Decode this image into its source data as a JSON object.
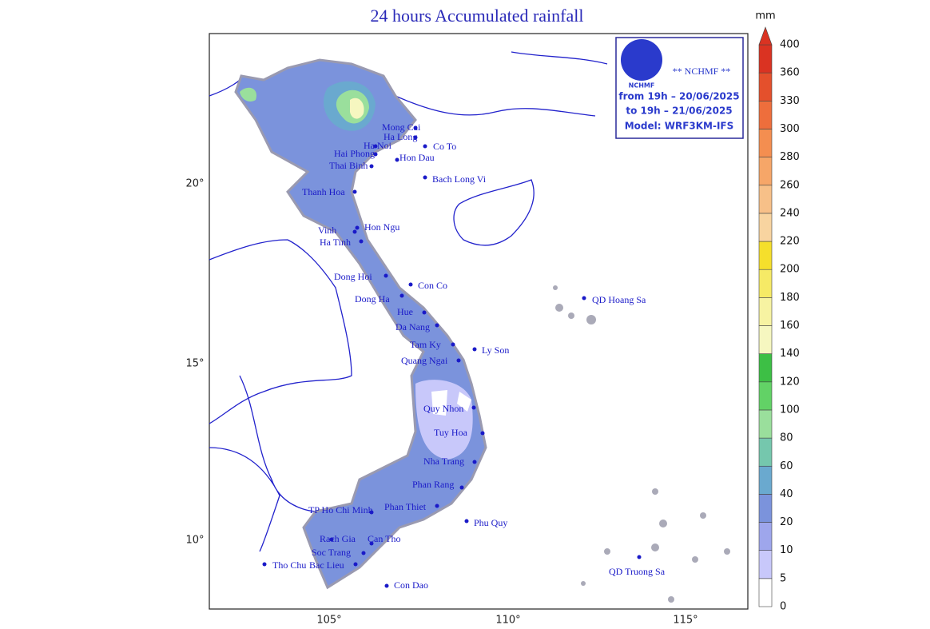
{
  "title": "24 hours Accumulated rainfall",
  "logo": {
    "emblem": "NCHMF",
    "agency": "** NCHMF **",
    "from": "from 19h – 20/06/2025",
    "to": "to 19h – 21/06/2025",
    "model": "Model: WRF3KM-IFS"
  },
  "axes": {
    "x_labels": [
      "105°",
      "110°",
      "115°"
    ],
    "y_labels": [
      "20°",
      "15°",
      "10°"
    ]
  },
  "colorbar": {
    "unit": "mm",
    "levels": [
      "0",
      "5",
      "10",
      "20",
      "40",
      "60",
      "80",
      "100",
      "120",
      "140",
      "160",
      "180",
      "200",
      "220",
      "240",
      "260",
      "280",
      "300",
      "330",
      "360",
      "400"
    ],
    "colors": [
      "#ffffff",
      "#c8c8fa",
      "#9ea6ec",
      "#7b93dc",
      "#6aa9cf",
      "#75c7ad",
      "#9adf9c",
      "#62d266",
      "#3dbf45",
      "#f6f7c0",
      "#f7f3a2",
      "#f6ea66",
      "#f5df2c",
      "#f8d4a0",
      "#f7c088",
      "#f6a668",
      "#f48e50",
      "#ee6e3c",
      "#e4502c",
      "#da3322"
    ]
  },
  "stations": [
    "Mong Cai",
    "Ha Noi",
    "Ha Long",
    "Co To",
    "Hon Dau",
    "Hai Phong",
    "Thai Binh",
    "Bach Long Vi",
    "Thanh Hoa",
    "Hon Ngu",
    "Vinh",
    "Ha Tinh",
    "Dong Hoi",
    "Con Co",
    "Dong Ha",
    "Hue",
    "Da Nang",
    "Tam Ky",
    "Ly Son",
    "Quang Ngai",
    "QD Hoang Sa",
    "Quy Nhon",
    "Tuy Hoa",
    "Nha Trang",
    "Phan Rang",
    "Phan Thiet",
    "TP Ho Chi Minh",
    "Phu Quy",
    "Tho Chu",
    "Rach Gia",
    "Can Tho",
    "Soc Trang",
    "Bac Lieu",
    "Con Dao",
    "QD Truong Sa"
  ]
}
